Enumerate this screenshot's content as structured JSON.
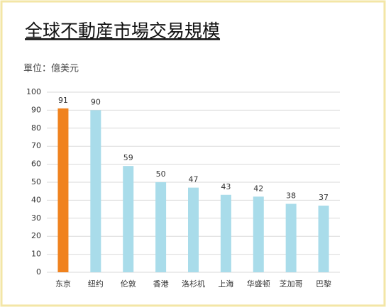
{
  "chart_data": {
    "type": "bar",
    "title": "全球不動産市場交易規模",
    "subtitle": "單位：億美元",
    "categories": [
      "东京",
      "纽约",
      "伦敦",
      "香港",
      "洛杉机",
      "上海",
      "华盛顿",
      "芝加哥",
      "巴黎"
    ],
    "values": [
      91,
      90,
      59,
      50,
      47,
      43,
      42,
      38,
      37
    ],
    "colors": [
      "#f0821e",
      "#a9dcea",
      "#a9dcea",
      "#a9dcea",
      "#a9dcea",
      "#a9dcea",
      "#a9dcea",
      "#a9dcea",
      "#a9dcea"
    ],
    "ylim": [
      0,
      100
    ],
    "yticks": [
      0,
      10,
      20,
      30,
      40,
      50,
      60,
      70,
      80,
      90,
      100
    ],
    "grid": true
  }
}
